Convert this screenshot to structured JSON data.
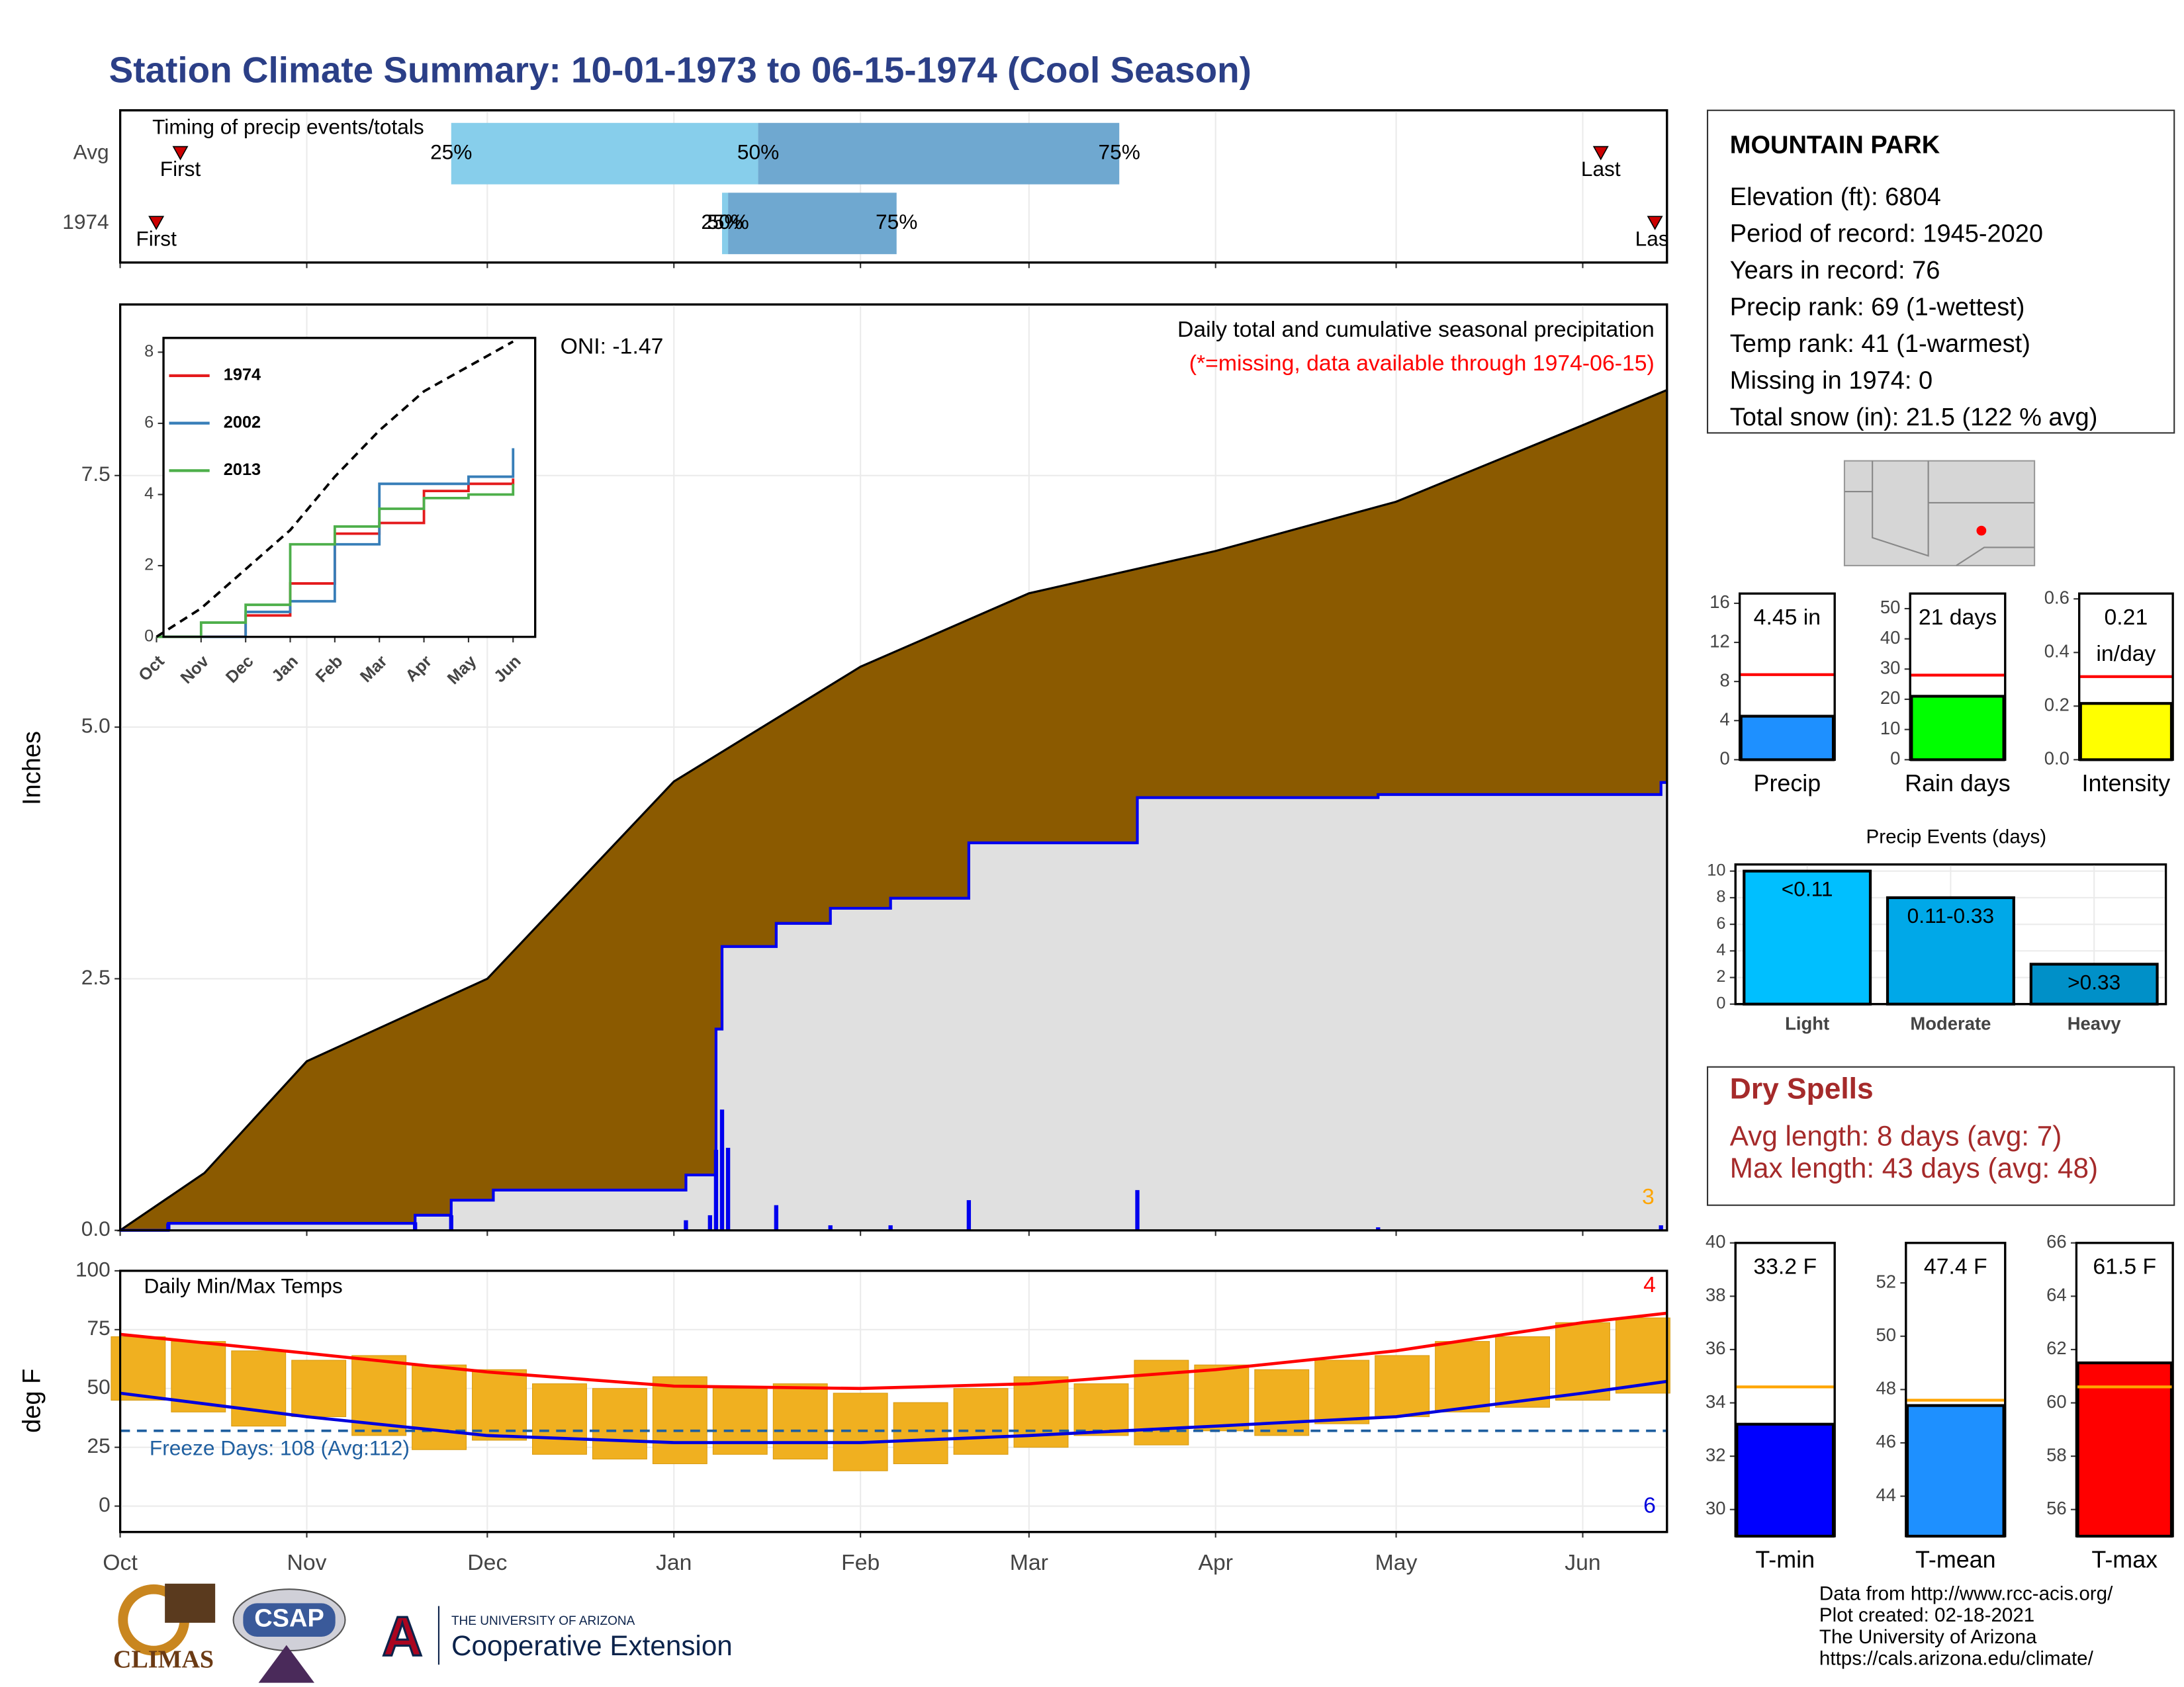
{
  "title": "Station Climate Summary: 10-01-1973 to 06-15-1974 (Cool Season)",
  "station": {
    "name": "MOUNTAIN PARK",
    "lines": [
      "Elevation (ft): 6804",
      "Period of record: 1945-2020",
      "Years in record: 76",
      "Precip rank: 69 (1-wettest)",
      "Temp rank: 41 (1-warmest)",
      "Missing in 1974: 0",
      "Total snow (in): 21.5 (122 % avg)"
    ]
  },
  "dry_spells": {
    "title": "Dry Spells",
    "lines": [
      "Avg length: 8 days (avg: 7)",
      "Max length: 43 days (avg: 48)"
    ]
  },
  "footer": [
    "Data from http://www.rcc-acis.org/",
    "Plot created: 02-18-2021",
    "The University of Arizona",
    "https://cals.arizona.edu/climate/"
  ],
  "logos": [
    "CLIMAS",
    "CSAP",
    "THE UNIVERSITY OF ARIZONA",
    "Cooperative Extension"
  ],
  "chart_data": [
    {
      "type": "timing",
      "subtitle": "Timing of precip events/totals",
      "categories": [
        "Avg",
        "1974"
      ],
      "point_labels": [
        "First",
        "25%",
        "50%",
        "75%",
        "Last"
      ],
      "values": [
        [
          10,
          55,
          106,
          166,
          246
        ],
        [
          6,
          100,
          101,
          129,
          255
        ]
      ],
      "colors": [
        "#cc0000",
        "#87ceeb",
        "#6fa8d0"
      ],
      "xlim": [
        0,
        257
      ],
      "xticks": [
        0,
        31,
        61,
        92,
        123,
        151,
        182,
        212,
        243
      ],
      "grid": true
    },
    {
      "type": "cumulative",
      "ylabel": "Inches",
      "annotations": [
        "ONI: -1.47",
        "Daily total and cumulative seasonal precipitation",
        "(*=missing, data available through 1974-06-15)",
        "3"
      ],
      "xlim": [
        0,
        257
      ],
      "xticks": [
        0,
        31,
        61,
        92,
        123,
        151,
        182,
        212,
        243
      ],
      "ylim": [
        0,
        9.2
      ],
      "yticks": [
        {
          "value": 0,
          "label": "0.0"
        },
        2.5,
        {
          "value": 5,
          "label": "5.0"
        },
        7.5
      ],
      "grid": true,
      "average": {
        "color": "#8b5a00",
        "x": [
          0,
          14,
          31,
          61,
          92,
          123,
          151,
          182,
          212,
          243,
          257
        ],
        "values": [
          0,
          0.57,
          1.68,
          2.5,
          4.46,
          5.6,
          6.33,
          6.75,
          7.24,
          8.0,
          8.35
        ]
      },
      "season": {
        "color": "#0000ee",
        "x": [
          0,
          8,
          49,
          55,
          62,
          94,
          99,
          100,
          109,
          118,
          128,
          141,
          169,
          209,
          256
        ],
        "values": [
          0,
          0.07,
          0.15,
          0.3,
          0.4,
          0.55,
          2.0,
          2.82,
          3.05,
          3.2,
          3.3,
          3.85,
          4.3,
          4.33,
          4.45
        ]
      },
      "daily": {
        "color": "#0000ee",
        "x": [
          8,
          49,
          55,
          94,
          98,
          99,
          100,
          101,
          109,
          118,
          128,
          141,
          169,
          209,
          256
        ],
        "values": [
          0.07,
          0.08,
          0.15,
          0.1,
          0.15,
          0.8,
          1.2,
          0.82,
          0.25,
          0.05,
          0.05,
          0.3,
          0.4,
          0.03,
          0.05
        ]
      }
    },
    {
      "type": "line",
      "categories": [
        "Oct",
        "Nov",
        "Dec",
        "Jan",
        "Feb",
        "Mar",
        "Apr",
        "May",
        "Jun"
      ],
      "ylim": [
        0,
        8.4
      ],
      "yticks": [
        0,
        2,
        4,
        6,
        8
      ],
      "series": [
        {
          "name": "1974",
          "color": "#e41a1c",
          "values": [
            0,
            0,
            0.6,
            1.5,
            2.9,
            3.2,
            4.1,
            4.3,
            4.45
          ]
        },
        {
          "name": "2002",
          "color": "#377eb8",
          "values": [
            0,
            0,
            0.7,
            1.0,
            2.6,
            4.3,
            4.3,
            4.5,
            5.3
          ]
        },
        {
          "name": "2013",
          "color": "#4daf4a",
          "values": [
            0,
            0.4,
            0.9,
            2.6,
            3.1,
            3.6,
            3.9,
            4.0,
            4.3
          ]
        },
        {
          "color": "#000000",
          "dashed": true,
          "values": [
            0,
            0.8,
            1.9,
            3.0,
            4.5,
            5.8,
            6.9,
            7.6,
            8.3
          ]
        }
      ]
    },
    {
      "type": "temperature",
      "title": "Daily Min/Max Temps",
      "ylabel": "deg F",
      "annotations": [
        "Freeze Days: 108 (Avg:112)",
        "4",
        "6"
      ],
      "xlim": [
        0,
        257
      ],
      "xticks": [
        {
          "value": 0,
          "label": "Oct"
        },
        {
          "value": 31,
          "label": "Nov"
        },
        {
          "value": 61,
          "label": "Dec"
        },
        {
          "value": 92,
          "label": "Jan"
        },
        {
          "value": 123,
          "label": "Feb"
        },
        {
          "value": 151,
          "label": "Mar"
        },
        {
          "value": 182,
          "label": "Apr"
        },
        {
          "value": 212,
          "label": "May"
        },
        {
          "value": 243,
          "label": "Jun"
        }
      ],
      "ylim": [
        -11,
        100
      ],
      "yticks": [
        0,
        25,
        50,
        75,
        100
      ],
      "grid": true,
      "freeze": 32,
      "x": [
        3,
        13,
        23,
        33,
        43,
        53,
        63,
        73,
        83,
        93,
        103,
        113,
        123,
        133,
        143,
        153,
        163,
        173,
        183,
        193,
        203,
        213,
        223,
        233,
        243,
        253
      ],
      "max": [
        72,
        70,
        66,
        62,
        64,
        60,
        58,
        52,
        50,
        55,
        50,
        52,
        48,
        44,
        50,
        55,
        52,
        62,
        60,
        58,
        62,
        64,
        70,
        72,
        78,
        80
      ],
      "min": [
        45,
        40,
        34,
        38,
        30,
        24,
        28,
        22,
        20,
        18,
        22,
        20,
        15,
        18,
        22,
        25,
        30,
        26,
        32,
        30,
        35,
        38,
        40,
        42,
        45,
        48
      ],
      "avg_x": [
        0,
        31,
        61,
        92,
        123,
        151,
        182,
        212,
        243,
        257
      ],
      "avg_max": [
        73,
        65,
        57,
        51,
        50,
        52,
        58,
        66,
        78,
        82
      ],
      "avg_min": [
        48,
        38,
        30,
        27,
        27,
        30,
        34,
        38,
        48,
        53
      ]
    },
    {
      "type": "summary_bar",
      "label": "Precip",
      "value": 4.45,
      "value_label": "4.45 in",
      "avg": 8.7,
      "ylim": [
        0,
        17
      ],
      "yticks": [
        0,
        4,
        8,
        12,
        16
      ],
      "color": "#1e90ff",
      "avg_color": "#ff0000"
    },
    {
      "type": "summary_bar",
      "label": "Rain days",
      "value": 21,
      "value_label": "21 days",
      "avg": 28,
      "ylim": [
        0,
        55
      ],
      "yticks": [
        0,
        10,
        20,
        30,
        40,
        50
      ],
      "color": "#00ff00",
      "avg_color": "#ff0000"
    },
    {
      "type": "summary_bar",
      "label": "Intensity",
      "value": 0.21,
      "value_label": "0.21 in/day",
      "avg": 0.31,
      "ylim": [
        0,
        0.62
      ],
      "yticks": [
        {
          "value": 0,
          "label": "0.0"
        },
        {
          "value": 0.2,
          "label": "0.2"
        },
        {
          "value": 0.4,
          "label": "0.4"
        },
        {
          "value": 0.6,
          "label": "0.6"
        }
      ],
      "color": "#ffff00",
      "avg_color": "#ff0000"
    },
    {
      "type": "bar",
      "title": "Precip Events (days)",
      "categories": [
        "Light",
        "Moderate",
        "Heavy"
      ],
      "bar_labels": [
        "<0.11",
        "0.11-0.33",
        ">0.33"
      ],
      "values": [
        10,
        8,
        3
      ],
      "colors": [
        "#00bfff",
        "#00a8e8",
        "#0090c8"
      ],
      "ylim": [
        0,
        10.5
      ],
      "yticks": [
        0,
        2,
        4,
        6,
        8,
        10
      ],
      "grid": true
    },
    {
      "type": "summary_bar",
      "label": "T-min",
      "value": 33.2,
      "value_label": "33.2 F",
      "avg": 34.6,
      "ylim": [
        29,
        40
      ],
      "yticks": [
        30,
        32,
        34,
        36,
        38,
        40
      ],
      "color": "#0000ff",
      "avg_color": "#ffa500"
    },
    {
      "type": "summary_bar",
      "label": "T-mean",
      "value": 47.4,
      "value_label": "47.4 F",
      "avg": 47.6,
      "ylim": [
        42.5,
        53.5
      ],
      "yticks": [
        44,
        46,
        48,
        50,
        52
      ],
      "color": "#1e90ff",
      "avg_color": "#ffa500"
    },
    {
      "type": "summary_bar",
      "label": "T-max",
      "value": 61.5,
      "value_label": "61.5 F",
      "avg": 60.6,
      "ylim": [
        55,
        66
      ],
      "yticks": [
        56,
        58,
        60,
        62,
        64,
        66
      ],
      "color": "#ff0000",
      "avg_color": "#ffa500"
    }
  ]
}
